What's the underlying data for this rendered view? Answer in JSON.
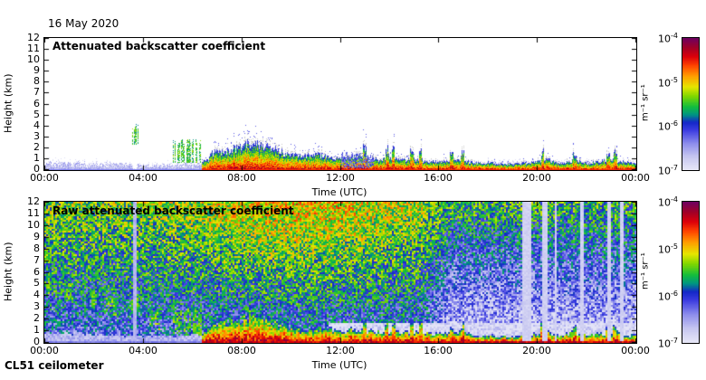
{
  "figure": {
    "date": "16 May 2020",
    "instrument": "CL51 ceilometer",
    "background_color": "#ffffff"
  },
  "colormap_stops": [
    [
      0.0,
      "#e8e8f8"
    ],
    [
      0.1,
      "#c6c6f0"
    ],
    [
      0.2,
      "#8c8cec"
    ],
    [
      0.3,
      "#3c3ce1"
    ],
    [
      0.36,
      "#1428c8"
    ],
    [
      0.42,
      "#009682"
    ],
    [
      0.48,
      "#14be3c"
    ],
    [
      0.56,
      "#82d700"
    ],
    [
      0.63,
      "#e6e600"
    ],
    [
      0.71,
      "#ffa000"
    ],
    [
      0.79,
      "#ff4600"
    ],
    [
      0.86,
      "#dc000a"
    ],
    [
      0.93,
      "#a00028"
    ],
    [
      1.0,
      "#700060"
    ]
  ],
  "special_colors": {
    "overflow_gray": "#cacaca",
    "axis": "#000000"
  },
  "chart_data": [
    {
      "type": "heatmap",
      "title": "Attenuated backscatter coefficient",
      "xlabel": "Time (UTC)",
      "ylabel": "Height (km)",
      "x_hours_range": [
        0,
        24
      ],
      "y_km_range": [
        0,
        12
      ],
      "xtick_hours": [
        0,
        4,
        8,
        12,
        16,
        20,
        24
      ],
      "xtick_labels": [
        "00:00",
        "04:00",
        "08:00",
        "12:00",
        "16:00",
        "20:00",
        "00:00"
      ],
      "ytick_km": [
        0,
        1,
        2,
        3,
        4,
        5,
        6,
        7,
        8,
        9,
        10,
        11,
        12
      ],
      "colorbar": {
        "unit": "m⁻¹ sr⁻¹",
        "scale": "log10",
        "tick_exponents": [
          -4,
          -5,
          -6,
          -7
        ],
        "value_range": [
          1e-07,
          0.0001
        ]
      },
      "features": {
        "aerosol_layer_top_km": [
          [
            0,
            0.85
          ],
          [
            0.7,
            0.8
          ],
          [
            1.5,
            0.75
          ],
          [
            2.2,
            0.68
          ],
          [
            3,
            0.6
          ],
          [
            3.6,
            0.54
          ],
          [
            4.2,
            0.52
          ],
          [
            5,
            0.58
          ],
          [
            5.6,
            0.62
          ],
          [
            6.2,
            0.68
          ],
          [
            7.2,
            0.74
          ]
        ],
        "cloud_layer_top_km": [
          [
            6.4,
            0.8
          ],
          [
            6.7,
            1.4
          ],
          [
            7.0,
            1.75
          ],
          [
            7.3,
            1.65
          ],
          [
            7.6,
            1.85
          ],
          [
            8.0,
            2.2
          ],
          [
            8.3,
            2.5
          ],
          [
            8.7,
            2.35
          ],
          [
            9.0,
            2.15
          ],
          [
            9.4,
            1.85
          ],
          [
            9.7,
            1.55
          ],
          [
            10.0,
            1.45
          ],
          [
            10.4,
            1.2
          ],
          [
            10.8,
            1.3
          ],
          [
            11.2,
            1.35
          ],
          [
            11.6,
            1.15
          ],
          [
            12.0,
            1.0
          ],
          [
            12.4,
            1.1
          ],
          [
            12.8,
            1.25
          ],
          [
            13.2,
            1.05
          ],
          [
            13.6,
            0.9
          ],
          [
            14.0,
            1.05
          ],
          [
            14.4,
            0.9
          ],
          [
            14.8,
            1.0
          ],
          [
            15.2,
            0.9
          ],
          [
            15.6,
            0.78
          ],
          [
            16.0,
            0.72
          ],
          [
            16.4,
            0.9
          ],
          [
            16.8,
            0.95
          ],
          [
            17.2,
            0.75
          ],
          [
            17.6,
            0.6
          ],
          [
            18.0,
            0.68
          ],
          [
            18.4,
            0.58
          ],
          [
            18.8,
            0.52
          ],
          [
            19.2,
            0.58
          ],
          [
            19.6,
            0.62
          ],
          [
            20.0,
            0.75
          ],
          [
            20.3,
            1.05
          ],
          [
            20.6,
            0.78
          ],
          [
            21.0,
            0.6
          ],
          [
            21.4,
            0.85
          ],
          [
            21.8,
            0.7
          ],
          [
            22.2,
            0.65
          ],
          [
            22.6,
            0.8
          ],
          [
            23.0,
            0.9
          ],
          [
            23.4,
            0.78
          ],
          [
            23.8,
            0.62
          ],
          [
            24,
            0.58
          ]
        ],
        "spike_times_h": [
          13.0,
          13.9,
          14.15,
          14.9,
          15.25,
          16.5,
          16.95,
          20.2,
          21.5,
          22.85,
          23.15
        ],
        "virga_events": [
          {
            "t0": 3.55,
            "t1": 3.8,
            "z0": 2.3,
            "z1": 4.3
          },
          {
            "t0": 5.2,
            "t1": 6.35,
            "z0": 0.65,
            "z1": 3.0
          }
        ],
        "clear_gap_t": {
          "t": 3.68,
          "w": 0.15
        },
        "blue_patch": {
          "t0": 12.05,
          "t1": 13.35,
          "z_top_km": 1.7
        }
      }
    },
    {
      "type": "heatmap",
      "title": "Raw attenuated backscatter coefficient",
      "xlabel": "Time (UTC)",
      "ylabel": "Height (km)",
      "x_hours_range": [
        0,
        24
      ],
      "y_km_range": [
        0,
        12
      ],
      "xtick_hours": [
        0,
        4,
        8,
        12,
        16,
        20,
        24
      ],
      "xtick_labels": [
        "00:00",
        "04:00",
        "08:00",
        "12:00",
        "16:00",
        "20:00",
        "00:00"
      ],
      "ytick_km": [
        0,
        1,
        2,
        3,
        4,
        5,
        6,
        7,
        8,
        9,
        10,
        11,
        12
      ],
      "colorbar": {
        "unit": "m⁻¹ sr⁻¹",
        "scale": "log10",
        "tick_exponents": [
          -4,
          -5,
          -6,
          -7
        ],
        "value_range": [
          1e-07,
          0.0001
        ]
      },
      "features": {
        "noise": {
          "day_top_level": 0.67,
          "night_top_level": 0.48,
          "low_level": 0.26,
          "day_peak_hour": 10.5,
          "regime_change_hour": 15.9,
          "spread": 0.36,
          "pale_band_after_hour": 11.5,
          "pale_band_top_km": 1.7
        },
        "fall_streaks": {
          "t_end_h": 6.6,
          "top_km_at_0h": 5.7,
          "slope_km_per_h": 0.66,
          "band_km": 1.5
        },
        "gap_stripes": [
          {
            "t": 3.68,
            "w": 0.15,
            "v": 0.1
          },
          {
            "t": 19.55,
            "w": 0.4,
            "v": 0.04
          },
          {
            "t": 20.3,
            "w": 0.2,
            "v": 0.04
          },
          {
            "t": 20.72,
            "w": 0.1,
            "v": 0.04
          },
          {
            "t": 21.83,
            "w": 0.15,
            "v": 0.04
          },
          {
            "t": 22.9,
            "w": 0.1,
            "v": 0.04
          },
          {
            "t": 23.43,
            "w": 0.15,
            "v": 0.04
          }
        ]
      }
    }
  ]
}
